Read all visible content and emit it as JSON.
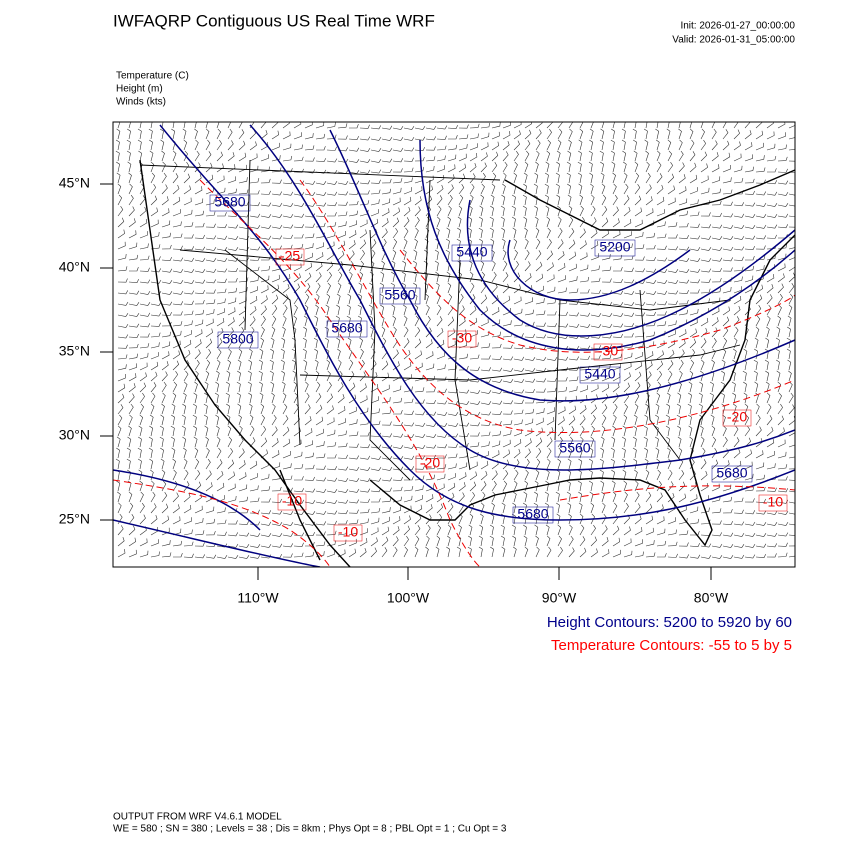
{
  "header": {
    "title": "IWFAQRP Contiguous US Real Time WRF",
    "init": "Init: 2026-01-27_00:00:00",
    "valid": "Valid: 2026-01-31_05:00:00"
  },
  "fields": [
    "Temperature   (C)",
    "Height   (m)",
    "Winds   (kts)"
  ],
  "lat_labels": [
    "45°N",
    "40°N",
    "35°N",
    "30°N",
    "25°N"
  ],
  "lon_labels": [
    "110°W",
    "100°W",
    "90°W",
    "80°W"
  ],
  "height_labels": [
    "5680",
    "5440",
    "5200",
    "5560",
    "5680",
    "5800",
    "5440",
    "5560",
    "5680",
    "5680"
  ],
  "temperature_labels": [
    "-25",
    "-30",
    "-30",
    "-20",
    "-20",
    "-10",
    "-10",
    "-10"
  ],
  "contour_info": {
    "height": "Height Contours: 5200 to 5920 by 60",
    "temperature": "Temperature Contours: -55 to 5 by 5"
  },
  "footer": {
    "line1": "OUTPUT FROM WRF V4.6.1 MODEL",
    "line2": "WE = 580 ; SN = 380 ; Levels = 38 ; Dis = 8km ; Phys Opt = 8 ; PBL Opt = 1 ; Cu Opt = 3"
  }
}
